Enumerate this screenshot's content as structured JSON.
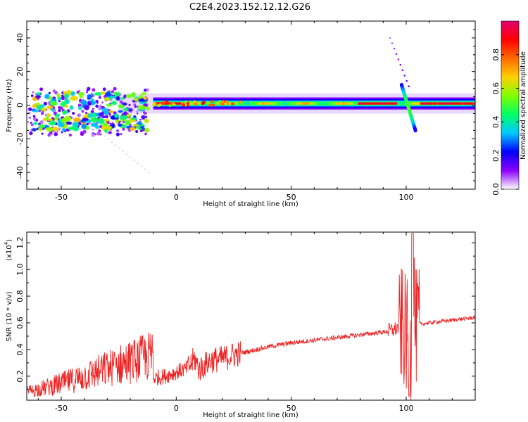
{
  "title": "C2E4.2023.152.12.12.G26",
  "colors": {
    "snr_line": "#ee2222",
    "axis": "#000000",
    "colormap": [
      "#ffffff",
      "#8c00ff",
      "#0000ff",
      "#00c8ff",
      "#00ff66",
      "#7fff00",
      "#ffd000",
      "#ff6a00",
      "#ff0000",
      "#e0006e"
    ]
  },
  "chart_data": [
    {
      "type": "heatmap",
      "xlabel": "Height of straight line (km)",
      "ylabel": "Frequency (Hz)",
      "xlim": [
        -65,
        130
      ],
      "ylim": [
        -50,
        50
      ],
      "xticks": [
        -50,
        0,
        50,
        100
      ],
      "yticks": [
        -40,
        -20,
        0,
        20,
        40
      ],
      "colorbar": {
        "label": "Normalized spectral amplitude",
        "range": [
          0.0,
          1.0
        ],
        "ticks": [
          "0.0",
          "0.2",
          "0.4",
          "0.6",
          "0.8"
        ],
        "tick_values": [
          0.0,
          0.2,
          0.4,
          0.6,
          0.8
        ]
      },
      "features": {
        "carrier_band": {
          "x_range": [
            -10,
            130
          ],
          "frequency_hz": 1,
          "peak_amplitude": 1.0
        },
        "scatter_zone": {
          "x_range": [
            -62,
            -12
          ],
          "frequency_range": [
            -15,
            8
          ]
        },
        "spike": {
          "x_range": [
            98,
            104
          ],
          "frequency_range": [
            -15,
            12
          ]
        }
      }
    },
    {
      "type": "line",
      "xlabel": "Height of straight line (km)",
      "ylabel": "SNR (10 * v/v)",
      "y_scale_label": "(x10",
      "y_scale_exp": "4",
      "y_scale_close": ")",
      "xlim": [
        -65,
        130
      ],
      "ylim": [
        0.02,
        1.28
      ],
      "xticks": [
        -50,
        0,
        50,
        100
      ],
      "yticks": [
        "0.2",
        "0.4",
        "0.6",
        "0.8",
        "1.0",
        "1.2"
      ],
      "ytick_values": [
        0.2,
        0.4,
        0.6,
        0.8,
        1.0,
        1.2
      ],
      "series": [
        {
          "color": "#ee2222",
          "x": [
            -65,
            -55,
            -45,
            -35,
            -25,
            -15,
            -5,
            0,
            5,
            8,
            10,
            15,
            20,
            25,
            30,
            40,
            50,
            60,
            70,
            80,
            90,
            95,
            98,
            100,
            102,
            103,
            104,
            106,
            110,
            120,
            130
          ],
          "y": [
            0.06,
            0.07,
            0.09,
            0.12,
            0.15,
            0.17,
            0.2,
            0.23,
            0.26,
            0.33,
            0.25,
            0.32,
            0.33,
            0.36,
            0.38,
            0.42,
            0.45,
            0.47,
            0.49,
            0.51,
            0.53,
            0.55,
            0.58,
            0.5,
            0.4,
            0.95,
            0.55,
            0.59,
            0.6,
            0.62,
            0.64
          ]
        }
      ]
    }
  ]
}
